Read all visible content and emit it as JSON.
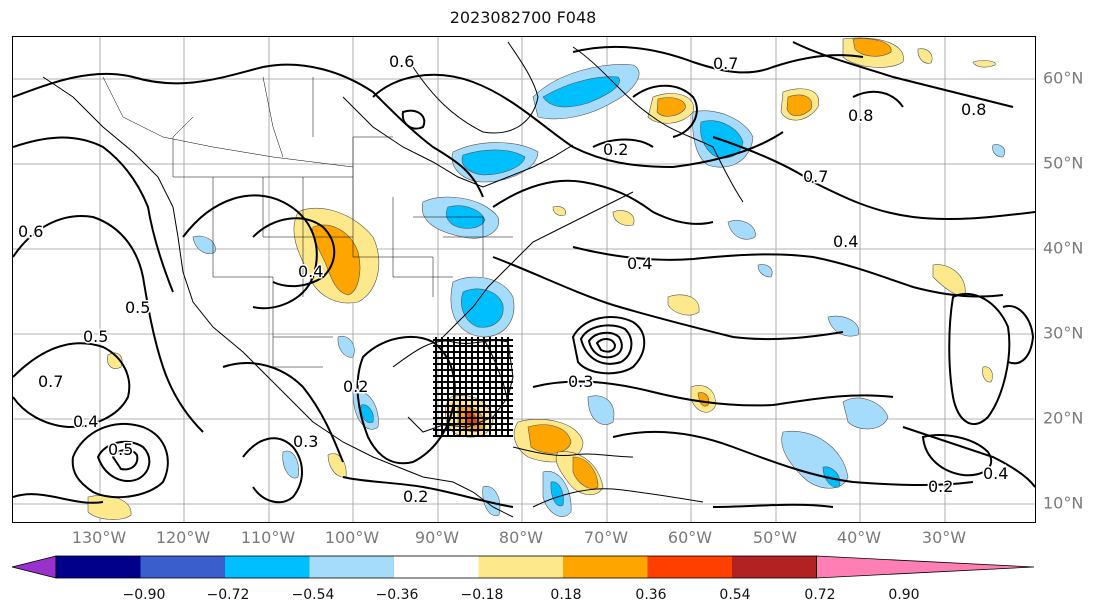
{
  "title": "2023082700 F048",
  "lon_labels": [
    "130°W",
    "120°W",
    "110°W",
    "100°W",
    "90°W",
    "80°W",
    "70°W",
    "60°W",
    "50°W",
    "40°W",
    "30°W"
  ],
  "lat_labels": [
    "60°N",
    "50°N",
    "40°N",
    "30°N",
    "20°N",
    "10°N"
  ],
  "contour_labels": [
    "0.6",
    "0.8",
    "0.5",
    "0.7",
    "0.4",
    "0.5",
    "0.3",
    "0.4",
    "0.2",
    "0.3",
    "0.2",
    "0.8",
    "0.7",
    "0.4",
    "0.2",
    "0.4",
    "0.7",
    "0.4",
    "0.2",
    "0.6",
    "0.5"
  ],
  "colorbar": {
    "ticks": [
      "−0.90",
      "−0.72",
      "−0.54",
      "−0.36",
      "−0.18",
      "0.18",
      "0.36",
      "0.54",
      "0.72",
      "0.90"
    ],
    "colors": [
      "#9932cc",
      "#00008b",
      "#3a5fcd",
      "#00bfff",
      "#a6dcfb",
      "#ffffff",
      "#fde98b",
      "#ffa500",
      "#ff3f00",
      "#b22222",
      "#ff7fb4"
    ]
  }
}
